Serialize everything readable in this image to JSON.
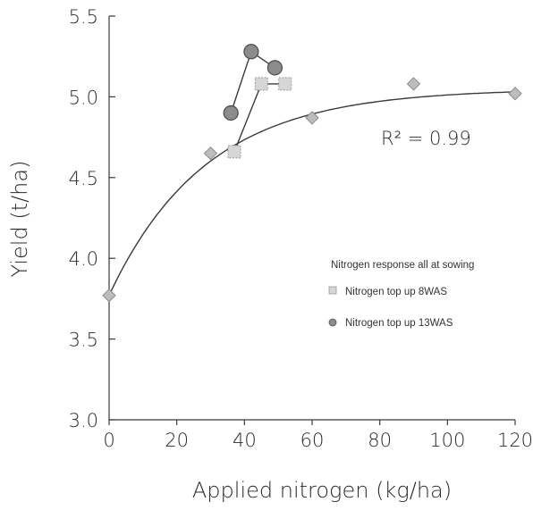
{
  "chart_data": {
    "type": "scatter",
    "xlabel": "Applied nitrogen (kg/ha)",
    "ylabel": "Yield (t/ha)",
    "xlim": [
      0,
      120
    ],
    "ylim": [
      3.0,
      5.5
    ],
    "x_ticks": [
      "0",
      "20",
      "40",
      "60",
      "80",
      "100",
      "120"
    ],
    "y_ticks": [
      "3.0",
      "3.5",
      "4.0",
      "4.5",
      "5.0",
      "5.5"
    ],
    "x_tick_values": [
      0,
      20,
      40,
      60,
      80,
      100,
      120
    ],
    "y_tick_values": [
      3.0,
      3.5,
      4.0,
      4.5,
      5.0,
      5.5
    ],
    "grid": false,
    "legend_position": "right",
    "annotation": "R² = 0.99",
    "series": [
      {
        "name": "Nitrogen response all at sowing",
        "marker": "diamond",
        "color": "#bdbdbd",
        "points": [
          {
            "x": 0,
            "y": 3.77
          },
          {
            "x": 30,
            "y": 4.65
          },
          {
            "x": 60,
            "y": 4.87
          },
          {
            "x": 90,
            "y": 5.08
          },
          {
            "x": 120,
            "y": 5.02
          }
        ]
      },
      {
        "name": "Nitrogen top up 8WAS",
        "marker": "square",
        "color": "#d6d6d6",
        "points": [
          {
            "x": 37,
            "y": 4.66
          },
          {
            "x": 45,
            "y": 5.08
          },
          {
            "x": 52,
            "y": 5.08
          }
        ]
      },
      {
        "name": "Nitrogen top up 13WAS",
        "marker": "circle",
        "color": "#8c8c8c",
        "points": [
          {
            "x": 36,
            "y": 4.9
          },
          {
            "x": 42,
            "y": 5.28
          },
          {
            "x": 49,
            "y": 5.18
          }
        ]
      }
    ],
    "fit_curve": {
      "form": "y = a + b(1 - exp(-k x))",
      "a": 3.77,
      "b": 1.28,
      "k": 0.035
    }
  }
}
